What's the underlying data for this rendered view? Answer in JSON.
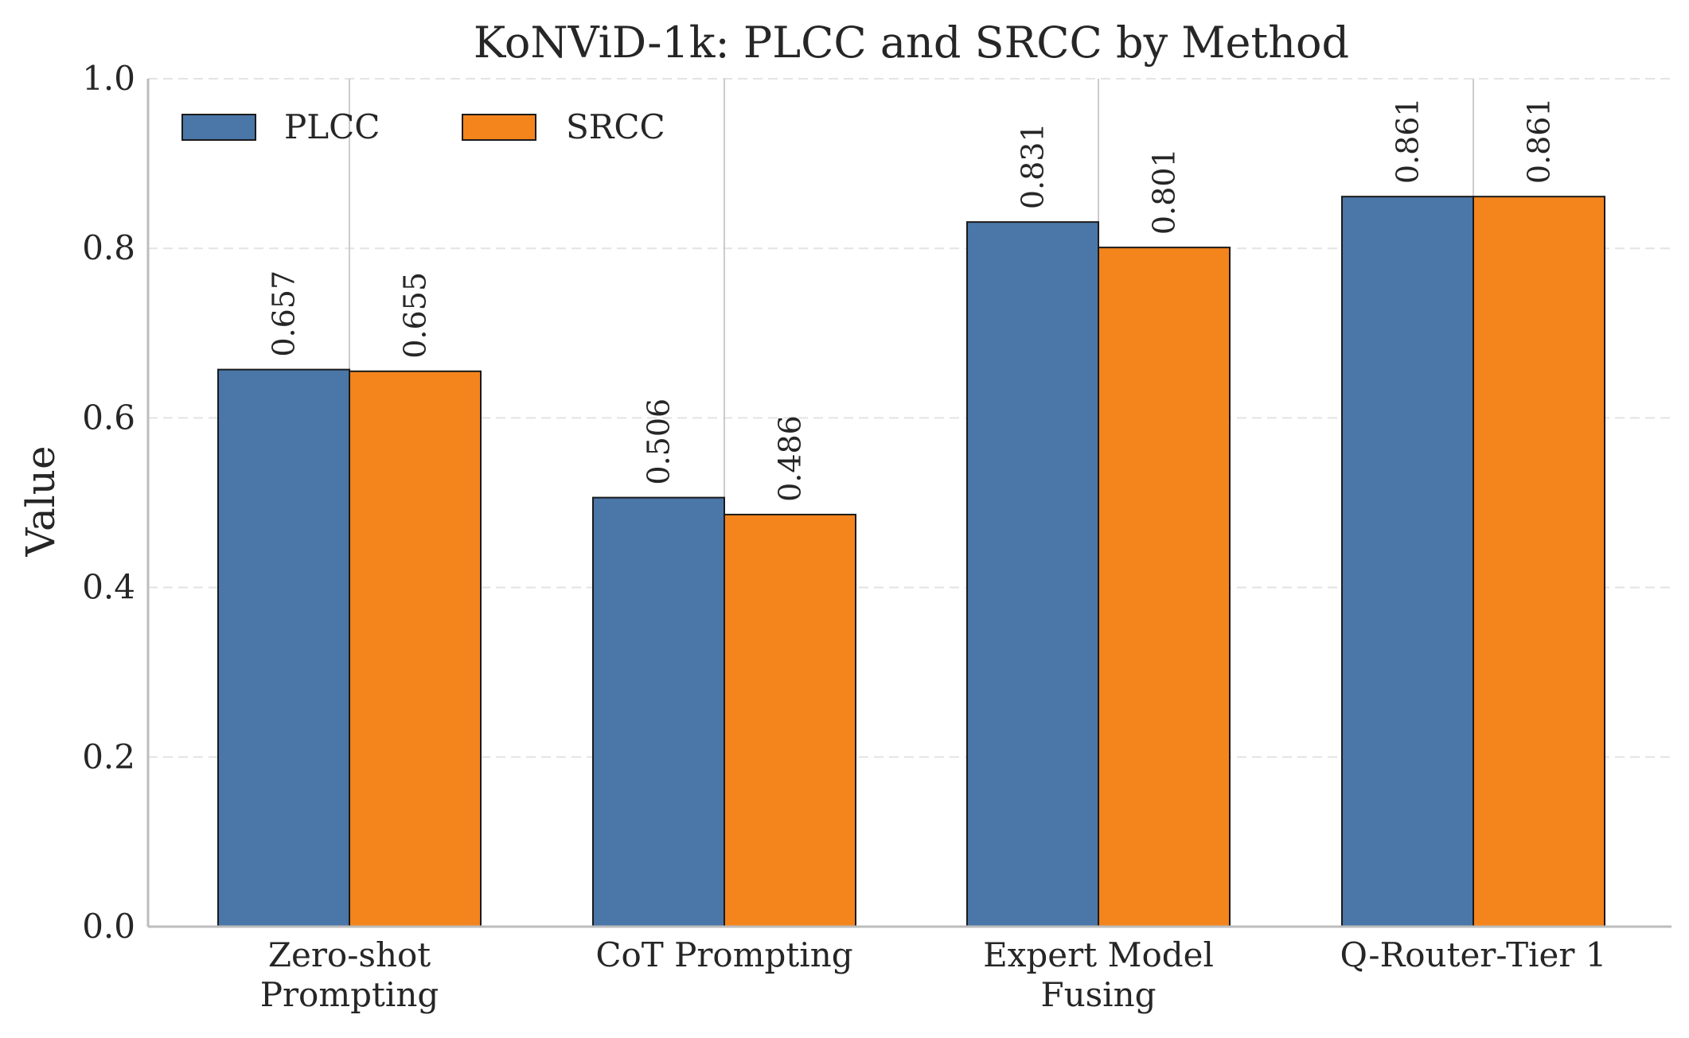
{
  "chart_data": {
    "type": "bar",
    "title": "KoNViD-1k: PLCC and SRCC by Method",
    "xlabel": "",
    "ylabel": "Value",
    "ylim": [
      0,
      1.0
    ],
    "yticks": [
      0.0,
      0.2,
      0.4,
      0.6,
      0.8,
      1.0
    ],
    "ytick_labels": [
      "0.0",
      "0.2",
      "0.4",
      "0.6",
      "0.8",
      "1.0"
    ],
    "grid": "y-dashed",
    "legend_position": "top-left",
    "categories": [
      [
        "Zero-shot",
        "Prompting"
      ],
      [
        "CoT Prompting"
      ],
      [
        "Expert Model",
        "Fusing"
      ],
      [
        "Q-Router-Tier 1"
      ]
    ],
    "series": [
      {
        "name": "PLCC",
        "color": "#4a76a8",
        "values": [
          0.657,
          0.506,
          0.831,
          0.861
        ],
        "labels": [
          "0.657",
          "0.506",
          "0.831",
          "0.861"
        ]
      },
      {
        "name": "SRCC",
        "color": "#f4841c",
        "values": [
          0.655,
          0.486,
          0.801,
          0.861
        ],
        "labels": [
          "0.655",
          "0.486",
          "0.801",
          "0.861"
        ]
      }
    ]
  }
}
